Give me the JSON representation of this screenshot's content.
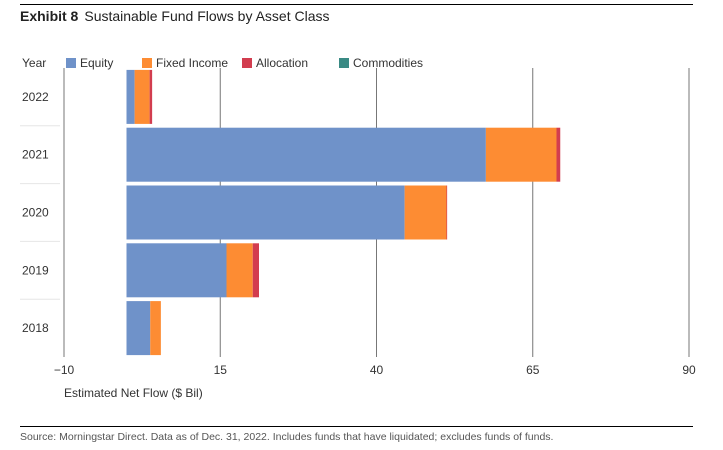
{
  "header": {
    "exhibit": "Exhibit 8",
    "title": "Sustainable Fund Flows by Asset Class"
  },
  "footer": {
    "source": "Source: Morningstar Direct. Data as of Dec. 31, 2022. Includes funds that have liquidated; excludes funds of funds."
  },
  "chart_data": {
    "type": "bar",
    "orientation": "horizontal",
    "stacked": true,
    "title": "Sustainable Fund Flows by Asset Class",
    "category_label": "Year",
    "xlabel": "Estimated Net Flow ($ Bil)",
    "xlim": [
      -10,
      90
    ],
    "xticks": [
      -10,
      15,
      40,
      65,
      90
    ],
    "xtick_labels": [
      "−10",
      "15",
      "40",
      "65",
      "90"
    ],
    "grid": true,
    "legend_position": "top",
    "categories": [
      "2022",
      "2021",
      "2020",
      "2019",
      "2018"
    ],
    "series": [
      {
        "name": "Equity",
        "color": "#6f92c9",
        "values": [
          1.3,
          57.5,
          44.5,
          16.0,
          3.8
        ]
      },
      {
        "name": "Fixed Income",
        "color": "#fd8c33",
        "values": [
          2.4,
          11.3,
          6.7,
          4.2,
          1.7
        ]
      },
      {
        "name": "Allocation",
        "color": "#d23d4f",
        "values": [
          0.4,
          0.6,
          0.1,
          1.0,
          0.0
        ]
      },
      {
        "name": "Commodities",
        "color": "#3a8a84",
        "values": [
          0.0,
          0.0,
          0.0,
          0.0,
          0.0
        ]
      }
    ]
  }
}
